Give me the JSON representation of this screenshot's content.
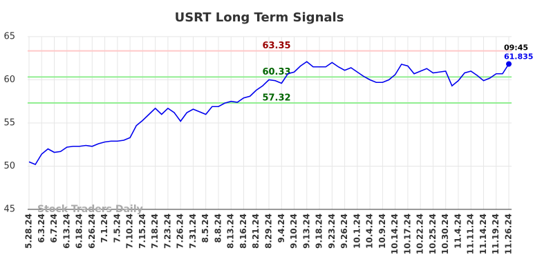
{
  "chart_data": {
    "type": "line",
    "title": "USRT Long Term Signals",
    "categories": [
      "5.28.24",
      null,
      "6.3.24",
      null,
      "6.7.24",
      null,
      "6.13.24",
      null,
      "6.18.24",
      null,
      "6.26.24",
      null,
      "7.1.24",
      null,
      "7.5.24",
      null,
      "7.10.24",
      null,
      "7.15.24",
      null,
      "7.18.24",
      null,
      "7.23.24",
      null,
      "7.26.24",
      null,
      "7.31.24",
      null,
      "8.5.24",
      null,
      "8.8.24",
      null,
      "8.13.24",
      null,
      "8.16.24",
      null,
      "8.21.24",
      null,
      "8.29.24",
      null,
      "9.4.24",
      null,
      "9.10.24",
      null,
      "9.13.24",
      null,
      "9.18.24",
      null,
      "9.23.24",
      null,
      "9.26.24",
      null,
      "10.1.24",
      null,
      "10.4.24",
      null,
      "10.9.24",
      null,
      "10.14.24",
      null,
      "10.17.24",
      null,
      "10.22.24",
      null,
      "10.25.24",
      null,
      "10.30.24",
      null,
      "11.4.24",
      null,
      "11.11.24",
      null,
      "11.14.24",
      null,
      "11.19.24",
      null,
      "11.26.24"
    ],
    "series": [
      {
        "color": "#0000ee",
        "values": [
          50.5,
          50.2,
          51.4,
          52.0,
          51.6,
          51.7,
          52.2,
          52.3,
          52.3,
          52.4,
          52.3,
          52.6,
          52.8,
          52.9,
          52.9,
          53.0,
          53.3,
          54.7,
          55.3,
          56.0,
          56.7,
          56.0,
          56.7,
          56.2,
          55.2,
          56.2,
          56.6,
          56.3,
          56.0,
          56.9,
          56.9,
          57.3,
          57.5,
          57.4,
          57.9,
          58.1,
          58.8,
          59.3,
          60.0,
          59.9,
          59.6,
          60.7,
          60.9,
          61.6,
          62.1,
          61.5,
          61.5,
          61.5,
          62.0,
          61.5,
          61.1,
          61.4,
          60.9,
          60.4,
          60.0,
          59.7,
          59.7,
          60.0,
          60.6,
          61.8,
          61.6,
          60.7,
          61.0,
          61.3,
          60.8,
          60.9,
          61.0,
          59.3,
          59.9,
          60.8,
          61.0,
          60.5,
          59.9,
          60.2,
          60.7,
          60.7,
          61.835
        ]
      }
    ],
    "last_time": "09:45",
    "hlines": [
      {
        "value": 63.35,
        "color": "#ffc8c8",
        "label_color": "#990000"
      },
      {
        "value": 60.33,
        "color": "#90ee90",
        "label_color": "#006400"
      },
      {
        "value": 57.32,
        "color": "#90ee90",
        "label_color": "#006400"
      }
    ],
    "watermark": "Stock Traders Daily",
    "ylim": [
      45,
      65
    ],
    "yticks": [
      45,
      50,
      55,
      60,
      65
    ],
    "grid": true
  }
}
